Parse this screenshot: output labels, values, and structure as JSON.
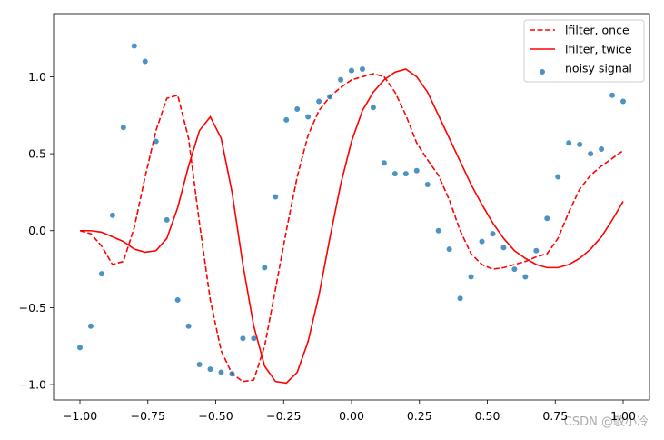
{
  "chart_data": {
    "type": "line",
    "x": [
      -1.0,
      -0.96,
      -0.92,
      -0.88,
      -0.84,
      -0.8,
      -0.76,
      -0.72,
      -0.68,
      -0.64,
      -0.6,
      -0.56,
      -0.52,
      -0.48,
      -0.44,
      -0.4,
      -0.36,
      -0.32,
      -0.28,
      -0.24,
      -0.2,
      -0.16,
      -0.12,
      -0.08,
      -0.04,
      0.0,
      0.04,
      0.08,
      0.12,
      0.16,
      0.2,
      0.24,
      0.28,
      0.32,
      0.36,
      0.4,
      0.44,
      0.48,
      0.52,
      0.56,
      0.6,
      0.64,
      0.68,
      0.72,
      0.76,
      0.8,
      0.84,
      0.88,
      0.92,
      0.96,
      1.0
    ],
    "series": [
      {
        "name": "lfilter, once",
        "type": "line",
        "linestyle": "dashed",
        "color": "#ff0000",
        "values": [
          0.0,
          -0.02,
          -0.1,
          -0.22,
          -0.2,
          0.02,
          0.35,
          0.65,
          0.86,
          0.88,
          0.6,
          0.05,
          -0.45,
          -0.78,
          -0.93,
          -0.98,
          -0.97,
          -0.75,
          -0.38,
          0.0,
          0.35,
          0.62,
          0.78,
          0.87,
          0.93,
          0.98,
          1.0,
          1.02,
          1.0,
          0.9,
          0.75,
          0.57,
          0.46,
          0.36,
          0.2,
          0.0,
          -0.15,
          -0.22,
          -0.25,
          -0.24,
          -0.22,
          -0.2,
          -0.17,
          -0.15,
          -0.05,
          0.12,
          0.27,
          0.36,
          0.42,
          0.47,
          0.52
        ]
      },
      {
        "name": "lfilter, twice",
        "type": "line",
        "linestyle": "solid",
        "color": "#ff0000",
        "values": [
          0.0,
          0.0,
          -0.01,
          -0.04,
          -0.07,
          -0.12,
          -0.14,
          -0.13,
          -0.05,
          0.15,
          0.42,
          0.65,
          0.74,
          0.6,
          0.25,
          -0.22,
          -0.62,
          -0.88,
          -0.98,
          -0.99,
          -0.92,
          -0.72,
          -0.42,
          -0.05,
          0.3,
          0.58,
          0.78,
          0.9,
          0.98,
          1.03,
          1.05,
          1.0,
          0.9,
          0.75,
          0.6,
          0.45,
          0.3,
          0.17,
          0.05,
          -0.05,
          -0.13,
          -0.18,
          -0.22,
          -0.24,
          -0.24,
          -0.22,
          -0.18,
          -0.12,
          -0.04,
          0.07,
          0.19
        ]
      },
      {
        "name": "noisy signal",
        "type": "scatter",
        "color": "#1f77b4",
        "values": [
          -0.76,
          -0.62,
          -0.28,
          0.1,
          0.67,
          1.2,
          1.1,
          0.58,
          0.07,
          -0.45,
          -0.62,
          -0.87,
          -0.9,
          -0.92,
          -0.93,
          -0.7,
          -0.7,
          -0.24,
          0.22,
          0.72,
          0.79,
          0.74,
          0.84,
          0.87,
          0.98,
          1.04,
          1.05,
          0.8,
          0.44,
          0.37,
          0.37,
          0.39,
          0.3,
          0.0,
          -0.12,
          -0.44,
          -0.3,
          -0.07,
          -0.02,
          -0.11,
          -0.25,
          -0.3,
          -0.13,
          0.08,
          0.35,
          0.57,
          0.56,
          0.5,
          0.53,
          0.88,
          0.84
        ]
      }
    ],
    "xlim": [
      -1.097,
      1.097
    ],
    "ylim": [
      -1.1,
      1.41
    ],
    "xticks": [
      {
        "value": -1.0,
        "label": "−1.00"
      },
      {
        "value": -0.75,
        "label": "−0.75"
      },
      {
        "value": -0.5,
        "label": "−0.50"
      },
      {
        "value": -0.25,
        "label": "−0.25"
      },
      {
        "value": 0,
        "label": "0.00"
      },
      {
        "value": 0.25,
        "label": "0.25"
      },
      {
        "value": 0.5,
        "label": "0.50"
      },
      {
        "value": 0.75,
        "label": "0.75"
      },
      {
        "value": 1.0,
        "label": "1.00"
      }
    ],
    "yticks": [
      {
        "value": -1.0,
        "label": "−1.0"
      },
      {
        "value": -0.5,
        "label": "−0.5"
      },
      {
        "value": 0,
        "label": "0.0"
      },
      {
        "value": 0.5,
        "label": "0.5"
      },
      {
        "value": 1.0,
        "label": "1.0"
      }
    ],
    "grid": false,
    "legend": "upper right",
    "watermark": "CSDN @敬小冷"
  }
}
